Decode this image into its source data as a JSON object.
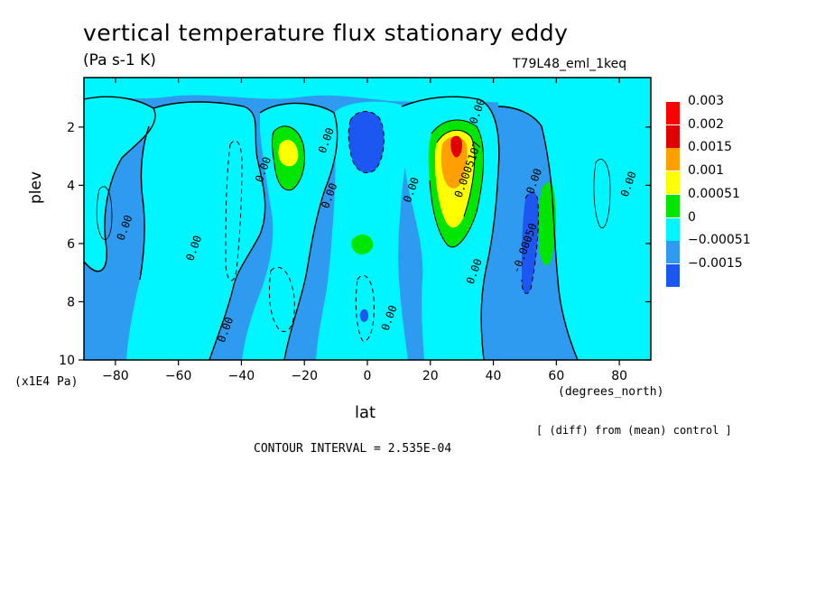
{
  "header": {
    "title": "vertical temperature flux stationary eddy",
    "units": "(Pa s-1 K)",
    "experiment": "T79L48_eml_1keq"
  },
  "footer": {
    "y_unit": "(x1E4 Pa)",
    "x_unit": "(degrees_north)",
    "comparison_note": "[ (diff) from (mean) control ]",
    "contour_interval": "CONTOUR INTERVAL = 2.535E-04"
  },
  "colors": {
    "deep_neg": "#1c57f2",
    "neg": "#2f9bf0",
    "zero": "#00f6ff",
    "pos1": "#00e600",
    "pos2": "#ffff00",
    "pos3": "#ffa000",
    "pos4": "#e00000",
    "max": "#ff0000"
  },
  "chart_data": {
    "type": "heatmap",
    "title": "vertical temperature flux stationary eddy",
    "subtitle": "(Pa s-1 K)",
    "xlabel": "lat",
    "ylabel": "plev",
    "xlim": [
      -90,
      90
    ],
    "ylim": [
      0.3,
      10
    ],
    "y_inverted": true,
    "x_ticks": [
      -80,
      -60,
      -40,
      -20,
      0,
      20,
      40,
      60,
      80
    ],
    "x_tick_labels": [
      "-80",
      "-60",
      "-40",
      "-20",
      "0",
      "20",
      "40",
      "60",
      "80"
    ],
    "y_ticks": [
      2,
      4,
      6,
      8,
      10
    ],
    "y_tick_labels": [
      "2",
      "4",
      "6",
      "8",
      "10"
    ],
    "legend": {
      "placement": "right",
      "levels": [
        "0.003",
        "0.002",
        "0.0015",
        "0.001",
        "0.00051",
        "0",
        "-0.00051",
        "-0.0015"
      ],
      "level_colors": [
        "#ff0000",
        "#e00000",
        "#ffa000",
        "#ffff00",
        "#00e600",
        "#00f6ff",
        "#2f9bf0",
        "#1c57f2"
      ]
    },
    "contour_labels": [
      {
        "lat": -76,
        "plev": 5.5,
        "text": "0.00"
      },
      {
        "lat": -54,
        "plev": 6.2,
        "text": "0.00"
      },
      {
        "lat": -44,
        "plev": 9.0,
        "text": "0.00"
      },
      {
        "lat": -32,
        "plev": 3.5,
        "text": "0.00"
      },
      {
        "lat": -12,
        "plev": 2.5,
        "text": "0.00"
      },
      {
        "lat": -11,
        "plev": 4.4,
        "text": "0.00"
      },
      {
        "lat": 8,
        "plev": 8.6,
        "text": "0.00"
      },
      {
        "lat": 15,
        "plev": 4.2,
        "text": "0.00"
      },
      {
        "lat": 36,
        "plev": 1.5,
        "text": "0.00"
      },
      {
        "lat": 33,
        "plev": 3.5,
        "text": "0.0005107"
      },
      {
        "lat": 35,
        "plev": 7.0,
        "text": "0.00"
      },
      {
        "lat": 51,
        "plev": 6.2,
        "text": "-0.00050"
      },
      {
        "lat": 54,
        "plev": 3.9,
        "text": "0.00"
      },
      {
        "lat": 84,
        "plev": 4.0,
        "text": "0.00"
      }
    ],
    "features": [
      {
        "name": "sh-positive-core",
        "lat": -26,
        "plev": 3.0,
        "level": "0.001"
      },
      {
        "name": "eq-negative-core",
        "lat": 0,
        "plev": 2.6,
        "level": "-0.0015"
      },
      {
        "name": "eq-positive-patch",
        "lat": 0,
        "plev": 6.0,
        "level": "0.00051"
      },
      {
        "name": "nh-positive-core",
        "lat": 28,
        "plev": 2.5,
        "level": "0.003"
      },
      {
        "name": "nh-negative-core",
        "lat": 50,
        "plev": 6.0,
        "level": "-0.0015"
      },
      {
        "name": "nh-positive-strip",
        "lat": 57,
        "plev": 5.0,
        "level": "0.00051"
      }
    ]
  }
}
